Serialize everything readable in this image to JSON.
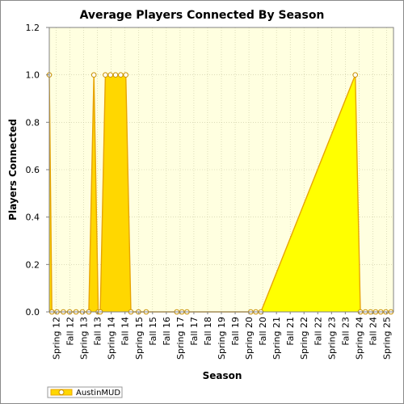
{
  "chart_data": {
    "type": "area",
    "title": "Average Players Connected By Season",
    "xlabel": "Season",
    "ylabel": "Players Connected",
    "ylim": [
      0,
      1.2
    ],
    "yticks": [
      "0.0",
      "0.2",
      "0.4",
      "0.6",
      "0.8",
      "1.0",
      "1.2"
    ],
    "categories": [
      "Spring 12",
      "Fall 12",
      "Spring 13",
      "Fall 13",
      "Spring 14",
      "Fall 14",
      "Spring 15",
      "Fall 15",
      "Fall 16",
      "Spring 17",
      "Fall 17",
      "Fall 18",
      "Spring 19",
      "Fall 19",
      "Spring 20",
      "Fall 20",
      "Spring 21",
      "Fall 21",
      "Spring 22",
      "Fall 22",
      "Spring 23",
      "Fall 23",
      "Spring 24",
      "Fall 24",
      "Spring 25"
    ],
    "x_range": [
      2012.0,
      2025.5
    ],
    "grid": true,
    "legend_position": "bottom-left",
    "colors": {
      "fill": "#ffd700",
      "fill_bright": "#ffff00",
      "line": "#e8a400",
      "marker": "#c89000",
      "plot_bg": "#ffffe0",
      "grid": "#c8c8a0"
    },
    "series": [
      {
        "name": "AustinMUD",
        "points": [
          [
            2012.0,
            1.0
          ],
          [
            2012.1,
            0.0
          ],
          [
            2012.3,
            0.0
          ],
          [
            2012.55,
            0.0
          ],
          [
            2012.8,
            0.0
          ],
          [
            2013.05,
            0.0
          ],
          [
            2013.3,
            0.0
          ],
          [
            2013.55,
            0.0
          ],
          [
            2013.75,
            1.0
          ],
          [
            2013.92,
            0.0
          ],
          [
            2014.0,
            0.0
          ],
          [
            2014.2,
            1.0
          ],
          [
            2014.4,
            1.0
          ],
          [
            2014.6,
            1.0
          ],
          [
            2014.8,
            1.0
          ],
          [
            2015.0,
            1.0
          ],
          [
            2015.2,
            0.0
          ],
          [
            2015.5,
            0.0
          ],
          [
            2015.8,
            0.0
          ],
          [
            2017.0,
            0.0
          ],
          [
            2017.2,
            0.0
          ],
          [
            2017.4,
            0.0
          ],
          [
            2019.9,
            0.0
          ],
          [
            2020.1,
            0.0
          ],
          [
            2020.3,
            0.0
          ],
          [
            2024.0,
            1.0
          ],
          [
            2024.2,
            0.0
          ],
          [
            2024.4,
            0.0
          ],
          [
            2024.6,
            0.0
          ],
          [
            2024.8,
            0.0
          ],
          [
            2025.0,
            0.0
          ],
          [
            2025.2,
            0.0
          ],
          [
            2025.4,
            0.0
          ]
        ]
      }
    ]
  }
}
